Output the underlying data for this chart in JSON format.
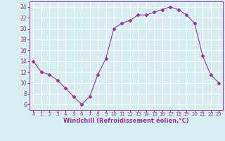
{
  "x": [
    0,
    1,
    2,
    3,
    4,
    5,
    6,
    7,
    8,
    9,
    10,
    11,
    12,
    13,
    14,
    15,
    16,
    17,
    18,
    19,
    20,
    21,
    22,
    23
  ],
  "y": [
    14,
    12,
    11.5,
    10.5,
    9,
    7.5,
    6,
    7.5,
    11.5,
    14.5,
    20,
    21,
    21.5,
    22.5,
    22.5,
    23,
    23.5,
    24,
    23.5,
    22.5,
    21,
    15,
    11.5,
    10
  ],
  "line_color": "#993399",
  "marker": "D",
  "marker_size": 2.5,
  "bg_color": "#d6eef2",
  "grid_color": "#ffffff",
  "xlabel": "Windchill (Refroidissement éolien,°C)",
  "xlabel_color": "#993399",
  "tick_color": "#993399",
  "axis_color": "#993399",
  "xlim": [
    -0.5,
    23.5
  ],
  "ylim": [
    5,
    25
  ],
  "yticks": [
    6,
    8,
    10,
    12,
    14,
    16,
    18,
    20,
    22,
    24
  ],
  "xticks": [
    0,
    1,
    2,
    3,
    4,
    5,
    6,
    7,
    8,
    9,
    10,
    11,
    12,
    13,
    14,
    15,
    16,
    17,
    18,
    19,
    20,
    21,
    22,
    23
  ]
}
